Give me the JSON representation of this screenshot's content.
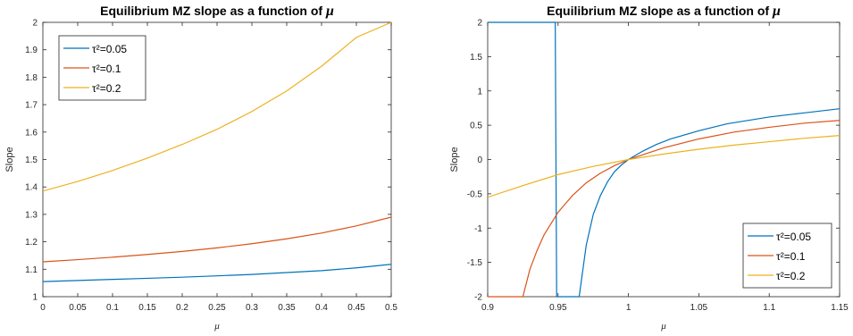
{
  "chart_data": [
    {
      "type": "line",
      "title": "Equilibrium MZ slope as a function of",
      "title_symbol": "μ",
      "xlabel": "μ",
      "ylabel": "Slope",
      "xlim": [
        0,
        0.5
      ],
      "ylim": [
        1,
        2
      ],
      "xticks": [
        "0",
        "0.05",
        "0.1",
        "0.15",
        "0.2",
        "0.25",
        "0.3",
        "0.35",
        "0.4",
        "0.45",
        "0.5"
      ],
      "yticks": [
        "1",
        "1.1",
        "1.2",
        "1.3",
        "1.4",
        "1.5",
        "1.6",
        "1.7",
        "1.8",
        "1.9",
        "2"
      ],
      "grid": false,
      "legend_position": "top-left",
      "x": [
        0,
        0.05,
        0.1,
        0.15,
        0.2,
        0.25,
        0.3,
        0.35,
        0.4,
        0.45,
        0.5
      ],
      "series": [
        {
          "name": "τ²=0.05",
          "color": "#0072BD",
          "values": [
            1.055,
            1.059,
            1.063,
            1.067,
            1.071,
            1.076,
            1.081,
            1.088,
            1.095,
            1.105,
            1.118
          ]
        },
        {
          "name": "τ²=0.1",
          "color": "#D95319",
          "values": [
            1.127,
            1.135,
            1.144,
            1.154,
            1.165,
            1.178,
            1.193,
            1.211,
            1.232,
            1.258,
            1.29
          ]
        },
        {
          "name": "τ²=0.2",
          "color": "#EDB120",
          "values": [
            1.385,
            1.42,
            1.46,
            1.505,
            1.555,
            1.61,
            1.675,
            1.75,
            1.84,
            1.945,
            2.0
          ]
        }
      ]
    },
    {
      "type": "line",
      "title": "Equilibrium MZ slope as a function of",
      "title_symbol": "μ",
      "xlabel": "μ",
      "ylabel": "Slope",
      "xlim": [
        0.9,
        1.15
      ],
      "ylim": [
        -2,
        2
      ],
      "xticks": [
        "0.9",
        "0.95",
        "1",
        "1.05",
        "1.1",
        "1.15"
      ],
      "yticks": [
        "-2",
        "-1.5",
        "-1",
        "-0.5",
        "0",
        "0.5",
        "1",
        "1.5",
        "2"
      ],
      "grid": false,
      "legend_position": "bottom-right",
      "series": [
        {
          "name": "τ²=0.05",
          "color": "#0072BD",
          "x": [
            0.9,
            0.948,
            0.948,
            0.949,
            0.949,
            0.965,
            0.965,
            0.97,
            0.975,
            0.98,
            0.985,
            0.99,
            0.995,
            1.0,
            1.01,
            1.02,
            1.03,
            1.05,
            1.07,
            1.1,
            1.125,
            1.15
          ],
          "values": [
            2,
            2,
            2,
            -2,
            -2,
            -2,
            -2,
            -1.25,
            -0.8,
            -0.53,
            -0.33,
            -0.18,
            -0.08,
            0,
            0.12,
            0.22,
            0.3,
            0.42,
            0.52,
            0.62,
            0.68,
            0.74
          ]
        },
        {
          "name": "τ²=0.1",
          "color": "#D95319",
          "x": [
            0.9,
            0.925,
            0.925,
            0.93,
            0.935,
            0.94,
            0.95,
            0.96,
            0.97,
            0.98,
            0.99,
            1.0,
            1.025,
            1.05,
            1.075,
            1.1,
            1.125,
            1.15
          ],
          "values": [
            -2,
            -2,
            -2,
            -1.6,
            -1.33,
            -1.1,
            -0.77,
            -0.53,
            -0.34,
            -0.2,
            -0.09,
            0,
            0.17,
            0.3,
            0.4,
            0.47,
            0.53,
            0.57
          ]
        },
        {
          "name": "τ²=0.2",
          "color": "#EDB120",
          "x": [
            0.9,
            0.925,
            0.95,
            0.975,
            1.0,
            1.025,
            1.05,
            1.075,
            1.1,
            1.125,
            1.15
          ],
          "values": [
            -0.55,
            -0.38,
            -0.22,
            -0.1,
            0,
            0.08,
            0.15,
            0.21,
            0.26,
            0.31,
            0.35
          ]
        }
      ]
    }
  ]
}
